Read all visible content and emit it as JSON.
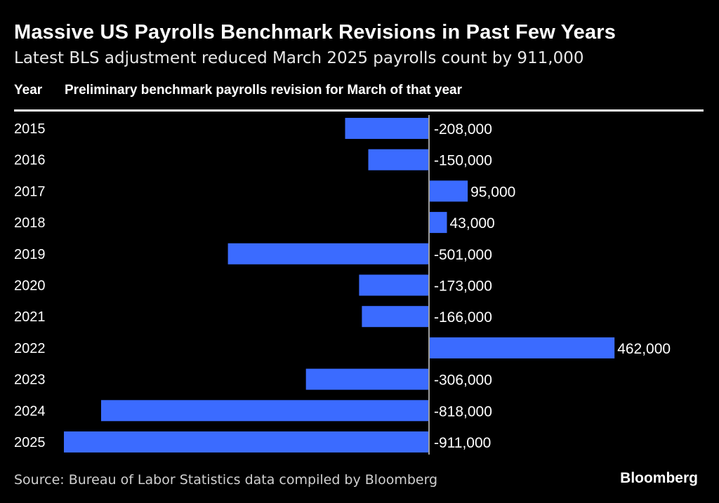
{
  "header": {
    "title": "Massive US Payrolls Benchmark Revisions in Past Few Years",
    "subtitle": "Latest BLS adjustment reduced March 2025 payrolls count by 911,000",
    "col_year": "Year",
    "col_desc": "Preliminary benchmark payrolls revision for March of that year"
  },
  "footer": {
    "source": "Source: Bureau of Labor Statistics data compiled by Bloomberg",
    "brand": "Bloomberg"
  },
  "chart_data": {
    "type": "bar",
    "orientation": "horizontal",
    "title": "Massive US Payrolls Benchmark Revisions in Past Few Years",
    "subtitle": "Latest BLS adjustment reduced March 2025 payrolls count by 911,000",
    "categories": [
      "2015",
      "2016",
      "2017",
      "2018",
      "2019",
      "2020",
      "2021",
      "2022",
      "2023",
      "2024",
      "2025"
    ],
    "values": [
      -208000,
      -150000,
      95000,
      43000,
      -501000,
      -173000,
      -166000,
      462000,
      -306000,
      -818000,
      -911000
    ],
    "labels": [
      "-208,000",
      "-150,000",
      "95,000",
      "43,000",
      "-501,000",
      "-173,000",
      "-166,000",
      "462,000",
      "-306,000",
      "-818,000",
      "-911,000"
    ],
    "xlim": [
      -911000,
      462000
    ],
    "bar_color": "#3b6bff",
    "grid": false,
    "legend": "none"
  }
}
